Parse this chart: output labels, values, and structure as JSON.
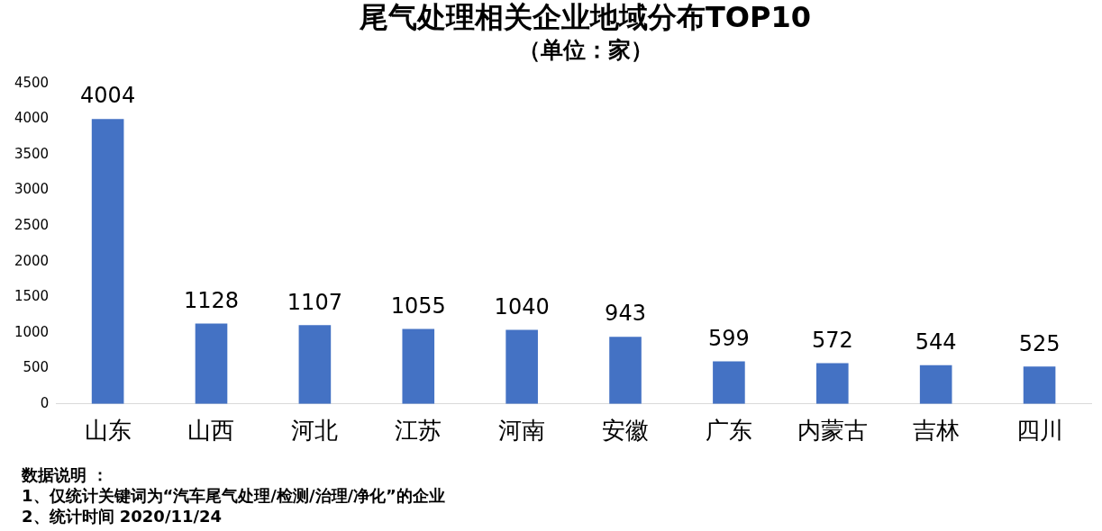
{
  "chart_data": {
    "type": "bar",
    "title": "尾气处理相关企业地域分布TOP10",
    "subtitle": "（单位：家）",
    "categories": [
      "山东",
      "山西",
      "河北",
      "江苏",
      "河南",
      "安徽",
      "广东",
      "内蒙古",
      "吉林",
      "四川"
    ],
    "values": [
      4004,
      1128,
      1107,
      1055,
      1040,
      943,
      599,
      572,
      544,
      525
    ],
    "color": "#4472c4",
    "ylim": [
      0,
      4500
    ],
    "yticks": [
      0,
      500,
      1000,
      1500,
      2000,
      2500,
      3000,
      3500,
      4000,
      4500
    ],
    "data_labels": true,
    "grid": false,
    "legend": false,
    "annotations": [
      "数据说明 ：",
      "1、仅统计关键词为“汽车尾气处理/检测/治理/净化”的企业",
      "2、统计时间 2020/11/24"
    ]
  }
}
